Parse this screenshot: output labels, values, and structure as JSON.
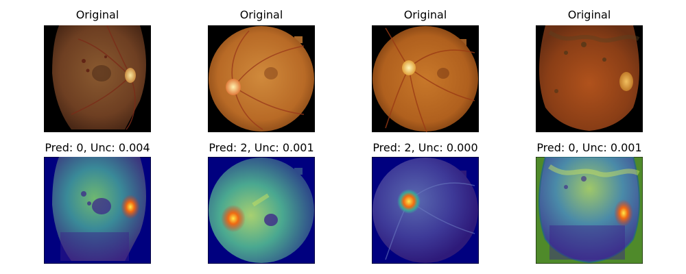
{
  "panels": [
    {
      "title": "Original"
    },
    {
      "title": "Original"
    },
    {
      "title": "Original"
    },
    {
      "title": "Original"
    },
    {
      "title": "Pred: 0, Unc: 0.004"
    },
    {
      "title": "Pred: 2, Unc: 0.001"
    },
    {
      "title": "Pred: 2, Unc: 0.000"
    },
    {
      "title": "Pred: 0, Unc: 0.001"
    }
  ],
  "colors": {
    "background_original": "#000000",
    "fundus_orange": "#c0752a",
    "fundus_dark": "#7a3a14",
    "optic_disc": "#f2e08a",
    "heatmap_background": "#00007f",
    "heatmap_background_4": "#4f8a2a",
    "heatmap_low": "#3b1f8a",
    "heatmap_mid": "#3aa59a",
    "heatmap_high": "#f06a12",
    "heatmap_peak": "#ffe14a"
  }
}
